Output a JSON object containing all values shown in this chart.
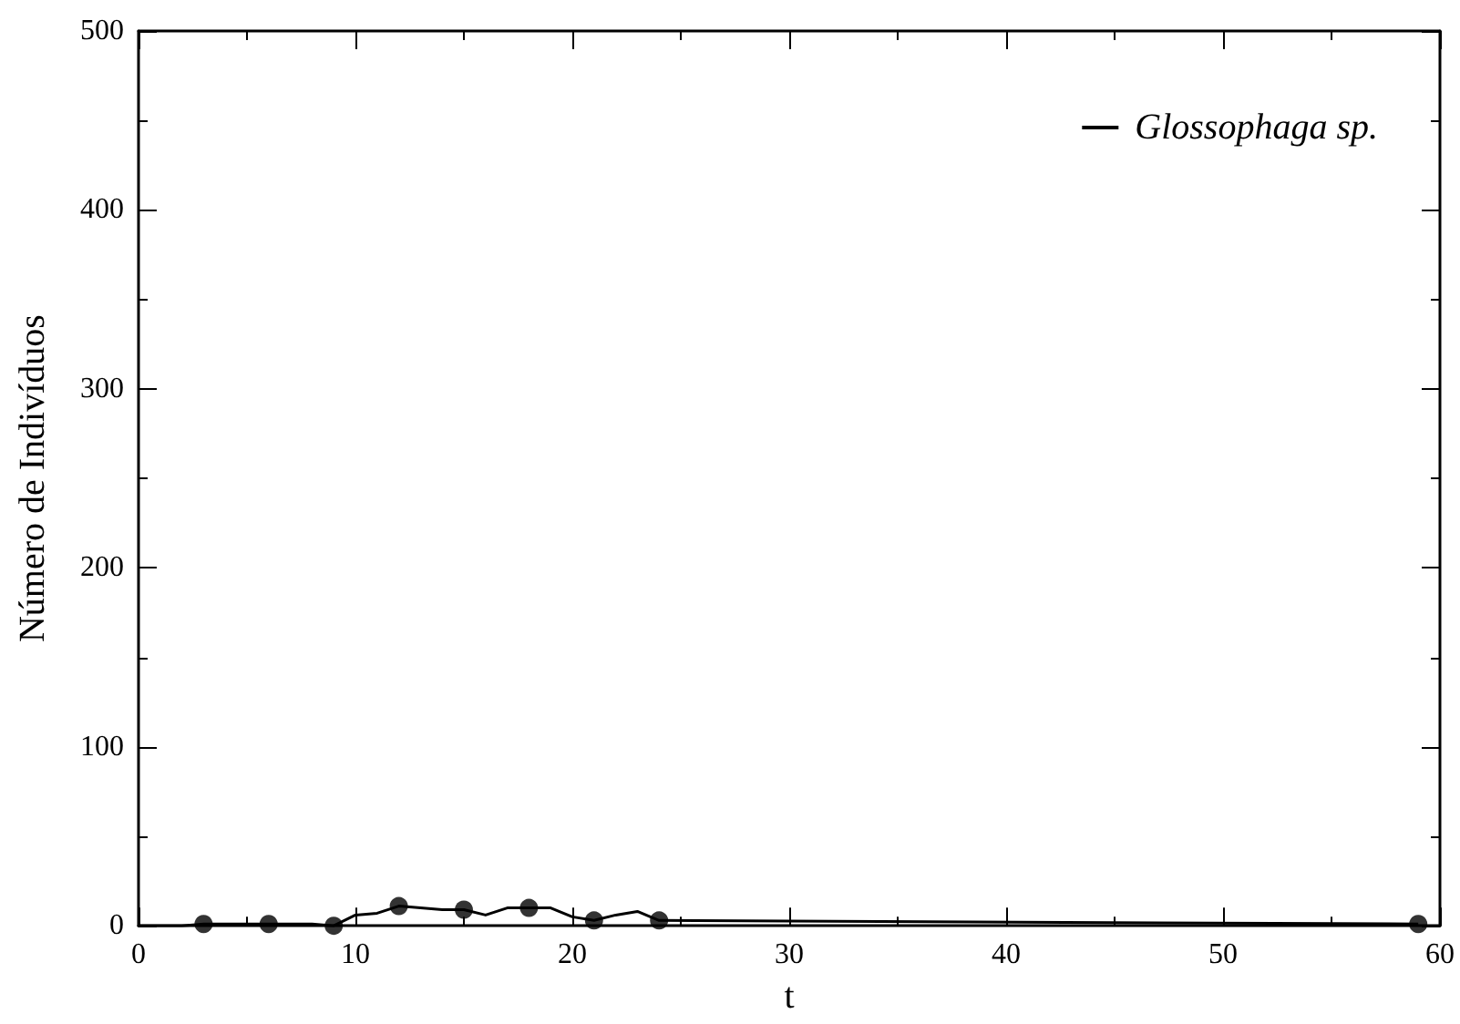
{
  "chart_data": {
    "type": "line",
    "xlabel": "t",
    "ylabel": "Número de Indivíduos",
    "xlim": [
      0,
      60
    ],
    "xticks": [
      0,
      10,
      20,
      30,
      40,
      50,
      60
    ],
    "ylim": [
      0,
      500
    ],
    "yticks": [
      0,
      100,
      200,
      300,
      400,
      500
    ],
    "grid": false,
    "legend": "top right",
    "series": [
      {
        "name": "Glossophaga sp.",
        "color": "#000000",
        "marker": "none",
        "x": [
          0,
          1,
          2,
          3,
          4,
          5,
          6,
          7,
          8,
          9,
          10,
          11,
          12,
          13,
          14,
          15,
          16,
          17,
          18,
          19,
          20,
          21,
          22,
          23,
          24,
          59
        ],
        "values": [
          0,
          0,
          0,
          1,
          1,
          1,
          1,
          1,
          1,
          0,
          6,
          7,
          11,
          10,
          9,
          9,
          6,
          10,
          10,
          10,
          5,
          3,
          6,
          8,
          3,
          1
        ]
      },
      {
        "type": "scatter",
        "color": "#000000",
        "marker": "circle",
        "x": [
          3,
          6,
          9,
          12,
          15,
          18,
          21,
          24,
          59
        ],
        "values": [
          1,
          1,
          0,
          11,
          9,
          10,
          3,
          3,
          1
        ]
      }
    ]
  }
}
